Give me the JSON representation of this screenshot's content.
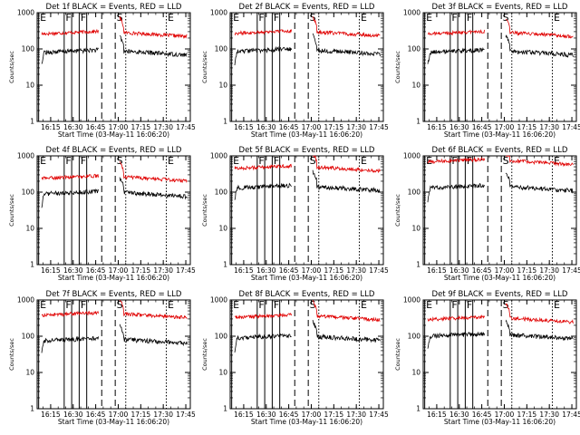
{
  "chart_data": {
    "type": "line",
    "layout": "3x3 grid",
    "y_scale": "log",
    "ylim": [
      1,
      1000
    ],
    "y_ticks": [
      "1",
      "10",
      "100",
      "1000"
    ],
    "ylabel": "Counts/sec",
    "xlabel": "Start Time (03-May-11 16:06:20)",
    "x_ticks": [
      "16:15",
      "16:30",
      "16:45",
      "17:00",
      "17:15",
      "17:30",
      "17:45"
    ],
    "xlim": [
      "16:06",
      "17:48"
    ],
    "colors": {
      "events": "#000000",
      "lld": "#e00000"
    },
    "line_markers": {
      "E_start": "16:07",
      "F_solid_a": "16:24",
      "F_solid_b": "16:29",
      "F_solid_c": "16:34",
      "F_solid_d": "16:39",
      "S_dashed_a": "16:49",
      "S_dashed_b": "16:58",
      "E_dotted_a": "17:05",
      "E_dotted_b": "17:32"
    },
    "marker_labels": [
      "E",
      "F",
      "F",
      "S",
      "E"
    ],
    "panels": [
      {
        "title": "Det 1f BLACK = Events, RED = LLD",
        "events_level": 80,
        "lld_level": 260
      },
      {
        "title": "Det 2f BLACK = Events, RED = LLD",
        "events_level": 85,
        "lld_level": 270
      },
      {
        "title": "Det 3f BLACK = Events, RED = LLD",
        "events_level": 80,
        "lld_level": 260
      },
      {
        "title": "Det 4f BLACK = Events, RED = LLD",
        "events_level": 90,
        "lld_level": 240
      },
      {
        "title": "Det 5f BLACK = Events, RED = LLD",
        "events_level": 130,
        "lld_level": 450
      },
      {
        "title": "Det 6f BLACK = Events, RED = LLD",
        "events_level": 130,
        "lld_level": 680
      },
      {
        "title": "Det 7f BLACK = Events, RED = LLD",
        "events_level": 75,
        "lld_level": 380
      },
      {
        "title": "Det 8f BLACK = Events, RED = LLD",
        "events_level": 90,
        "lld_level": 330
      },
      {
        "title": "Det 9f BLACK = Events, RED = LLD",
        "events_level": 100,
        "lld_level": 290
      }
    ]
  }
}
